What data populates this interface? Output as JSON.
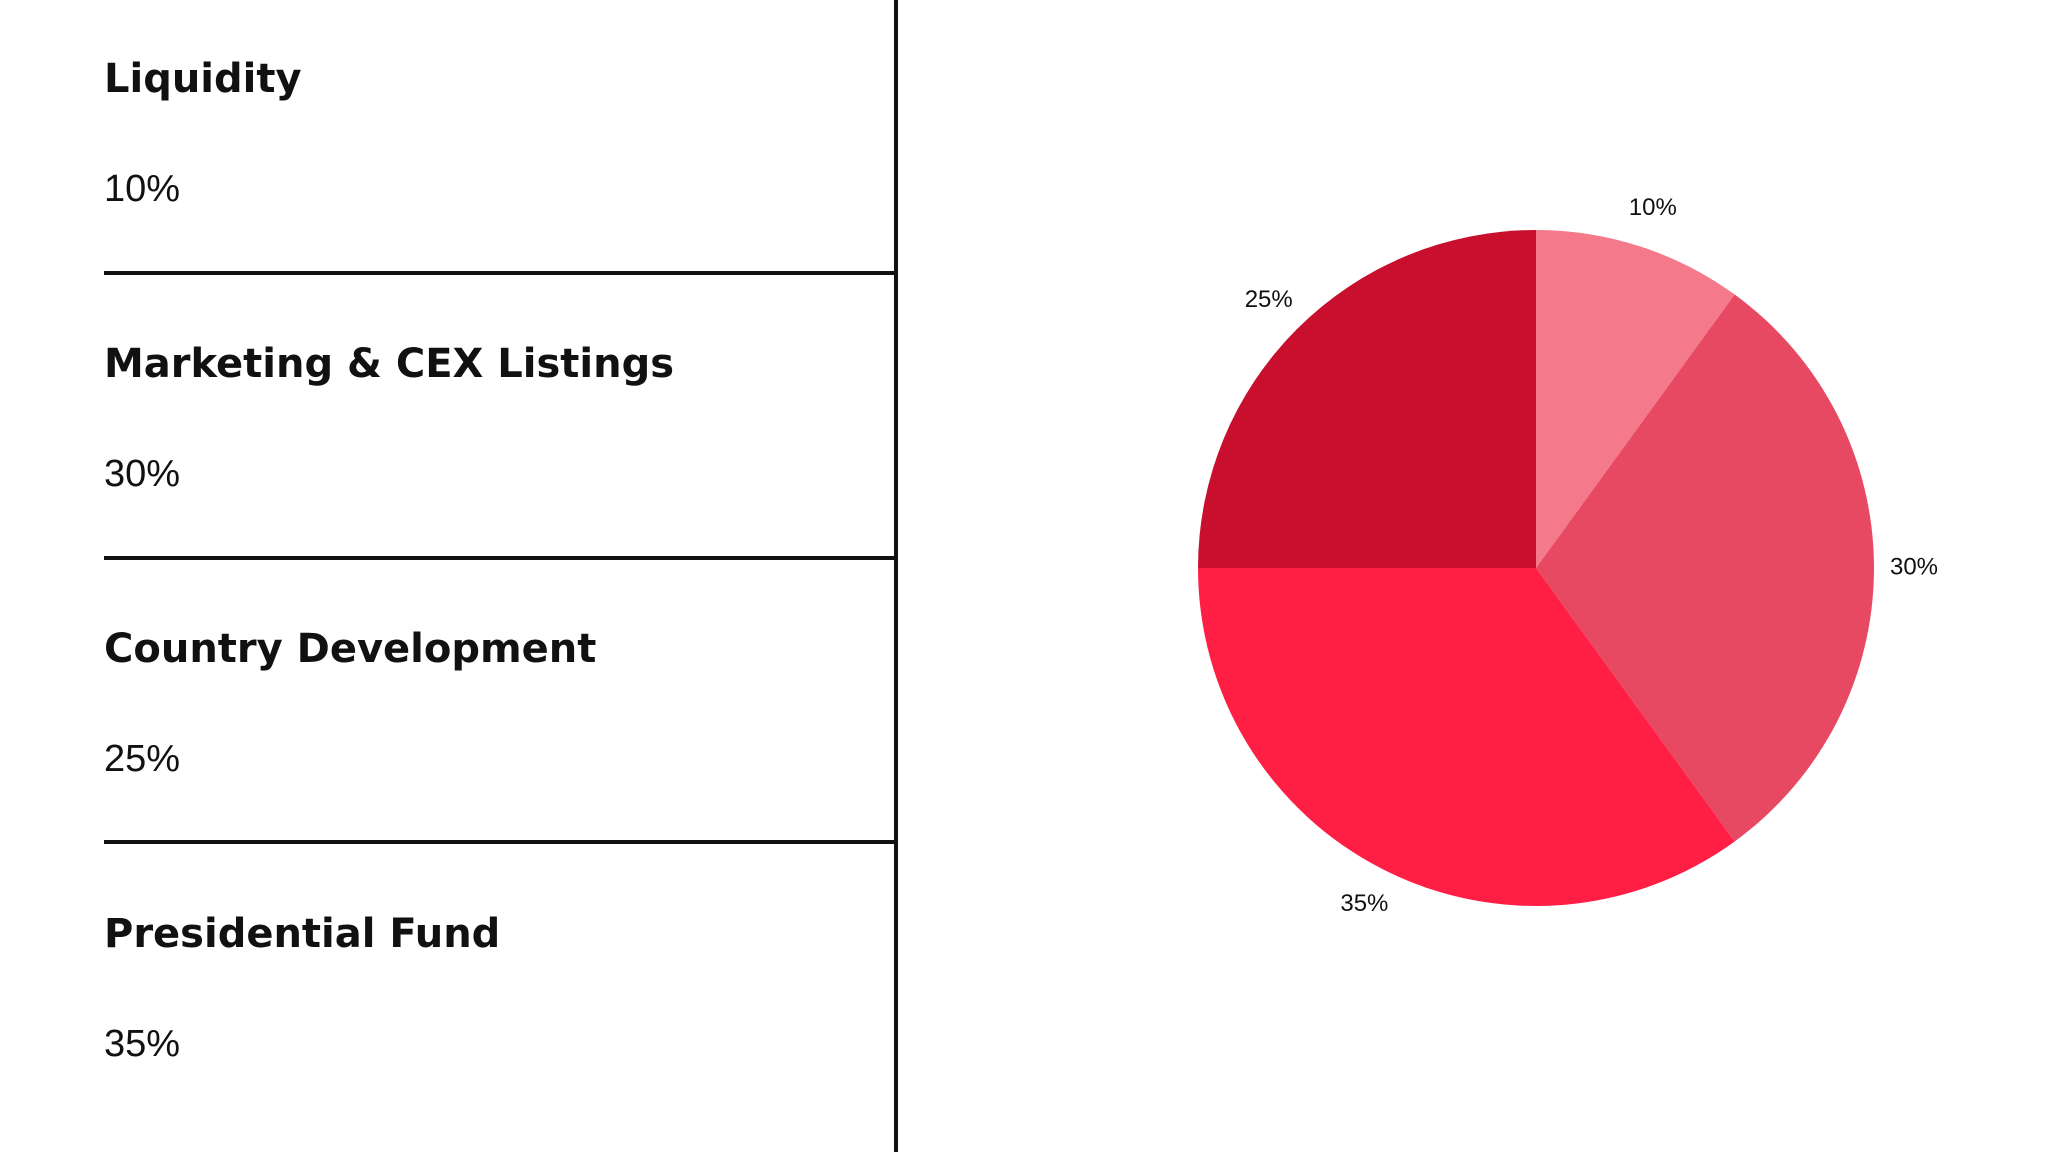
{
  "chart_data": {
    "type": "pie",
    "categories": [
      "Liquidity",
      "Marketing & CEX Listings",
      "Presidential Fund",
      "Country Development"
    ],
    "values": [
      10,
      30,
      35,
      25
    ],
    "value_labels": [
      "10%",
      "30%",
      "35%",
      "25%"
    ],
    "colors": [
      "#f47a8b",
      "#e84962",
      "#ff1f45",
      "#c8102e"
    ]
  }
}
